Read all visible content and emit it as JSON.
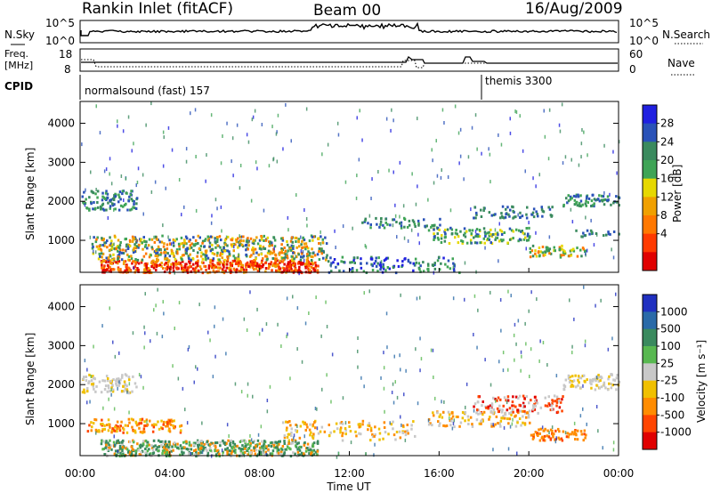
{
  "header": {
    "station": "Rankin Inlet (fitACF)",
    "beam": "Beam 00",
    "date": "16/Aug/2009"
  },
  "top_panels": {
    "nsky_label": "N.Sky",
    "nsky_ticks": [
      "10^5",
      "10^0"
    ],
    "nsearch_label": "N.Search",
    "freq_label_1": "Freq.",
    "freq_label_2": "[MHz]",
    "freq_ticks": [
      "18",
      "8"
    ],
    "nave_label": "Nave",
    "nave_ticks": [
      "60",
      "0"
    ],
    "cpid_label": "CPID",
    "cpid_segments": [
      {
        "label": "normalsound (fast) 157",
        "start_hour": 0
      },
      {
        "label": "themis 3300",
        "start_hour": 18
      }
    ]
  },
  "chart_data": [
    {
      "type": "heatmap",
      "xlabel": "Time UT",
      "ylabel": "Slant Range [km]",
      "x_ticks": [
        "00:00",
        "04:00",
        "08:00",
        "12:00",
        "16:00",
        "20:00",
        "00:00"
      ],
      "x_range_hours": [
        0,
        24
      ],
      "y_ticks": [
        1000,
        2000,
        3000,
        4000
      ],
      "y_range_km": [
        180,
        4560
      ],
      "colorbar": {
        "title": "Power [dB]",
        "ticks": [
          4,
          8,
          12,
          16,
          20,
          24,
          28
        ],
        "colors": [
          "#2020e0",
          "#2a52b8",
          "#3a8a5e",
          "#3fa456",
          "#e6d800",
          "#f0a000",
          "#ff7800",
          "#ff3a00",
          "#e00000"
        ]
      }
    },
    {
      "type": "heatmap",
      "xlabel": "Time UT",
      "ylabel": "Slant Range [km]",
      "x_ticks": [
        "00:00",
        "04:00",
        "08:00",
        "12:00",
        "16:00",
        "20:00",
        "00:00"
      ],
      "x_range_hours": [
        0,
        24
      ],
      "y_ticks": [
        1000,
        2000,
        3000,
        4000
      ],
      "y_range_km": [
        180,
        4560
      ],
      "colorbar": {
        "title": "Velocity [m s⁻¹]",
        "ticks": [
          1000,
          500,
          100,
          25,
          -25,
          -100,
          -500,
          -1000
        ],
        "colors": [
          "#2030c0",
          "#2a6aa8",
          "#3a8a5e",
          "#58b850",
          "#c8c8c8",
          "#f0c000",
          "#ff8c00",
          "#ff4500",
          "#e00000"
        ]
      }
    }
  ]
}
